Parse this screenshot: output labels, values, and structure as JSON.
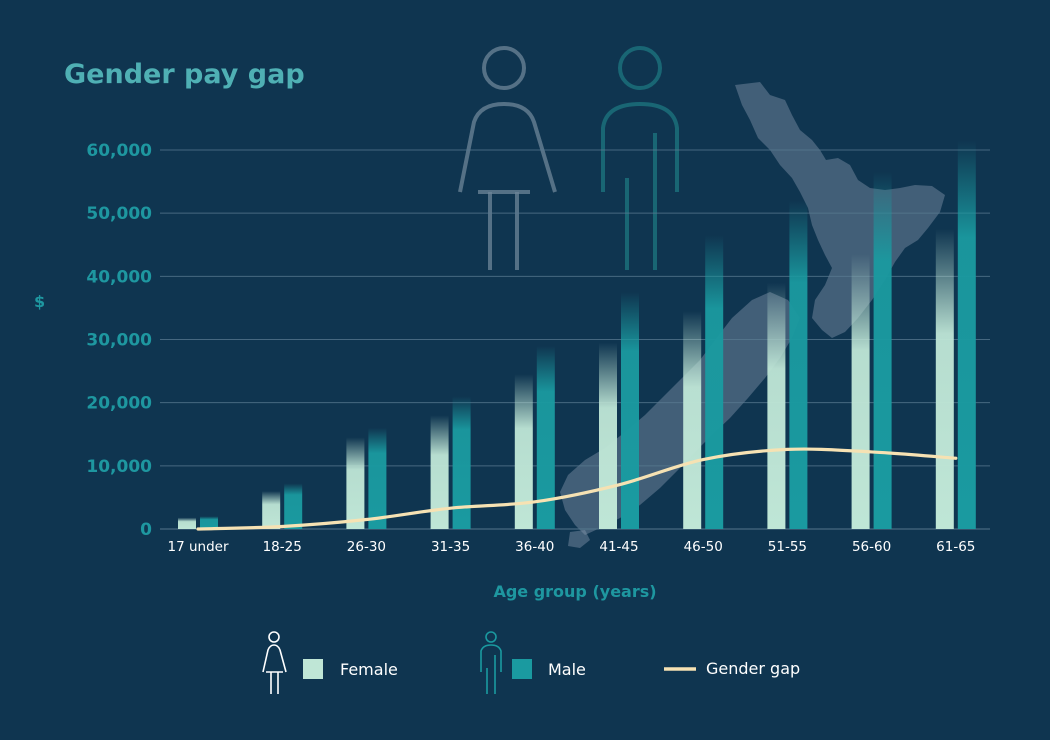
{
  "chart_data": {
    "type": "bar",
    "title": "Gender pay gap",
    "xlabel": "Age group (years)",
    "ylabel": "$",
    "ylim": [
      0,
      60000
    ],
    "yticks": [
      "0",
      "10,000",
      "20,000",
      "30,000",
      "40,000",
      "50,000",
      "60,000"
    ],
    "categories": [
      "17 under",
      "18-25",
      "26-30",
      "31-35",
      "36-40",
      "41-45",
      "46-50",
      "51-55",
      "56-60",
      "61-65"
    ],
    "series": [
      {
        "name": "Female",
        "type": "bar",
        "color": "#bfe6d6",
        "values": [
          1800,
          6000,
          14500,
          18000,
          24500,
          29500,
          34500,
          39000,
          43500,
          47500
        ]
      },
      {
        "name": "Male",
        "type": "bar",
        "color": "#1a9aa0",
        "values": [
          2000,
          7200,
          16000,
          21000,
          29000,
          37500,
          46500,
          52000,
          56500,
          61500
        ]
      },
      {
        "name": "Gender gap",
        "type": "line",
        "color": "#f6e2b3",
        "values": [
          0,
          400,
          1500,
          3300,
          4300,
          7000,
          11000,
          12600,
          12200,
          11200
        ]
      }
    ],
    "grid": true,
    "legend": "bottom",
    "legend_icons": [
      "female-figure-icon",
      "male-figure-icon"
    ],
    "background_icons": [
      "female-figure-icon",
      "male-figure-icon",
      "new-zealand-map-icon"
    ],
    "colors": {
      "background": "#0f3550",
      "accent": "#4fb0b4",
      "axis_text": "#1e97a0"
    }
  }
}
